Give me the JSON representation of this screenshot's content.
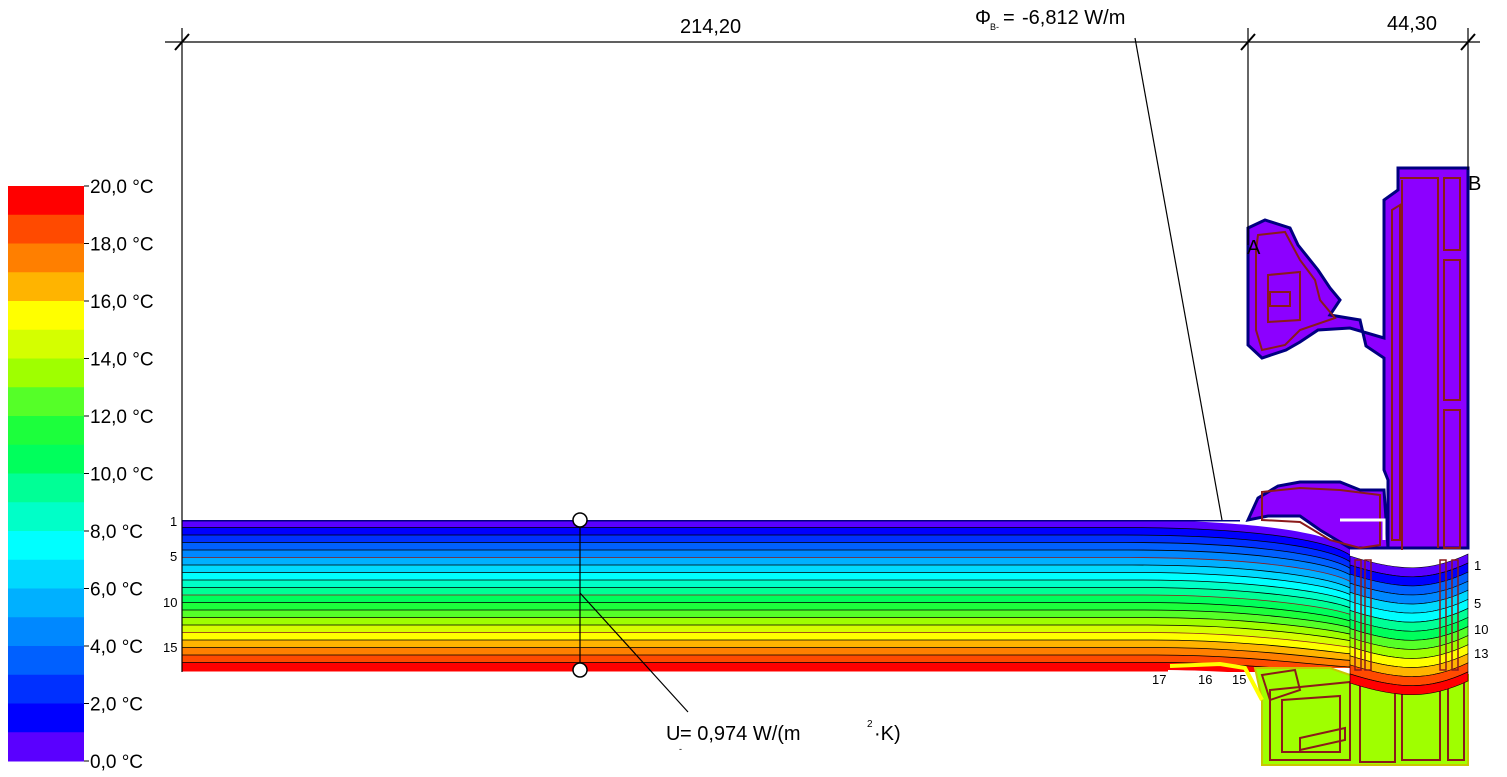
{
  "dimensions": {
    "left_width": "214,20",
    "right_width": "44,30",
    "heat_flow": "-6,812 W/m",
    "heat_flow_symbol": "Φ",
    "heat_flow_subscript": "B-",
    "u_value_prefix": "U",
    "u_value_subscript": "-",
    "u_value_text": "= 0,974 W/(m",
    "u_value_exponent": "2",
    "u_value_suffix": "·K)"
  },
  "points": {
    "a": "A",
    "b": "B"
  },
  "color_scale": {
    "unit": "°C",
    "labels": [
      "20,0 °C",
      "18,0 °C",
      "16,0 °C",
      "14,0 °C",
      "12,0 °C",
      "10,0 °C",
      "8,0 °C",
      "6,0 °C",
      "4,0 °C",
      "2,0 °C",
      "0,0 °C"
    ],
    "colors": [
      "#ff0000",
      "#ff4a00",
      "#ff7f00",
      "#ffb400",
      "#ffff00",
      "#d4ff00",
      "#9fff00",
      "#55ff28",
      "#1cff3c",
      "#00ff5c",
      "#00ff96",
      "#00ffc8",
      "#00ffff",
      "#00d9ff",
      "#00b0ff",
      "#0088ff",
      "#0060ff",
      "#0030ff",
      "#0000ff",
      "#5a00ff",
      "#8800ff"
    ]
  },
  "isotherm_labels": {
    "left": [
      "1",
      "5",
      "10",
      "15"
    ],
    "right": [
      "1",
      "5",
      "10",
      "13"
    ],
    "bottom": [
      "17",
      "16",
      "15"
    ]
  },
  "colors": {
    "frame_fill": "#8c00ff",
    "frame_outline": "#000080",
    "inner_lines": "#8b1a1a",
    "warm_fill": "#9fff00",
    "surface_line": "#ff0000"
  }
}
